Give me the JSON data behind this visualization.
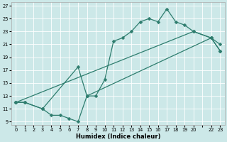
{
  "xlabel": "Humidex (Indice chaleur)",
  "bg_color": "#cce8e8",
  "grid_color": "#ffffff",
  "line_color": "#2e7d6e",
  "xlim": [
    -0.5,
    23.5
  ],
  "ylim": [
    8.5,
    27.5
  ],
  "yticks": [
    9,
    11,
    13,
    15,
    17,
    19,
    21,
    23,
    25,
    27
  ],
  "xtick_vals": [
    0,
    1,
    2,
    3,
    4,
    5,
    6,
    7,
    8,
    9,
    10,
    11,
    12,
    13,
    14,
    15,
    16,
    17,
    18,
    19,
    20,
    21,
    22,
    23
  ],
  "xtick_labels": [
    "0",
    "1",
    "2",
    "3",
    "4",
    "5",
    "6",
    "7",
    "8",
    "9",
    "10",
    "11",
    "12",
    "13",
    "14",
    "15",
    "16",
    "17",
    "18",
    "19",
    "20",
    "",
    "22",
    "23"
  ],
  "line1_x": [
    0,
    1,
    3,
    4,
    5,
    6,
    7,
    8,
    9,
    10,
    11,
    12,
    13,
    14,
    15,
    16,
    17,
    18,
    19,
    20,
    22,
    23
  ],
  "line1_y": [
    12,
    12,
    11,
    10,
    10,
    9.5,
    9,
    13,
    13,
    15.5,
    21.5,
    22,
    23,
    24.5,
    25,
    24.5,
    26.5,
    24.5,
    24,
    23,
    22,
    21
  ],
  "line2_x": [
    0,
    1,
    3,
    7,
    8,
    22,
    23
  ],
  "line2_y": [
    12,
    12,
    11,
    17.5,
    13,
    22,
    20
  ],
  "line3_x": [
    0,
    20,
    22,
    23
  ],
  "line3_y": [
    12,
    23,
    22,
    20
  ],
  "markersize": 2.5,
  "linewidth": 0.9
}
